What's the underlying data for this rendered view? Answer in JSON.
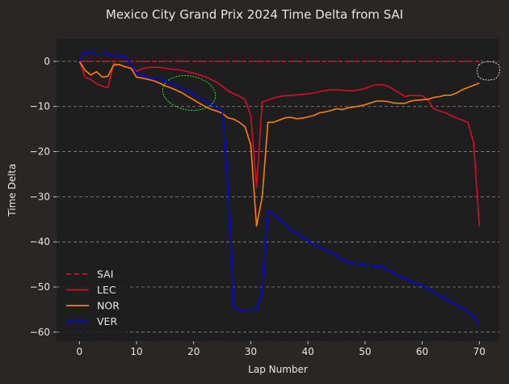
{
  "chart_data": {
    "type": "line",
    "title": "Mexico City Grand Prix 2024 Time Delta from SAI",
    "xlabel": "Lap Number",
    "ylabel": "Time Delta",
    "xlim": [
      -4,
      73.5
    ],
    "ylim": [
      -62,
      5
    ],
    "xticks": [
      0,
      10,
      20,
      30,
      40,
      50,
      60,
      70
    ],
    "xtick_labels": [
      "0",
      "10",
      "20",
      "30",
      "40",
      "50",
      "60",
      "70"
    ],
    "yticks": [
      0,
      -10,
      -20,
      -30,
      -40,
      -50,
      -60
    ],
    "ytick_labels": [
      "0",
      "−10",
      "−20",
      "−30",
      "−40",
      "−50",
      "−60"
    ],
    "grid": "horizontal dashed",
    "legend_position": "lower-left",
    "colors": {
      "figure_bg": "#292625",
      "axes_bg": "#1e1e1e",
      "text": "#e6e6e6",
      "grid": "#8a8a8a"
    },
    "series": [
      {
        "name": "SAI",
        "color": "#dc0a2a",
        "dash": true,
        "x": [
          0,
          70
        ],
        "y": [
          0,
          0
        ]
      },
      {
        "name": "LEC",
        "color": "#dc0a2a",
        "dash": false,
        "x": [
          0,
          1,
          2,
          3,
          4,
          5,
          6,
          7,
          8,
          9,
          10,
          11,
          12,
          13,
          14,
          15,
          16,
          17,
          18,
          19,
          20,
          21,
          22,
          23,
          24,
          25,
          26,
          27,
          28,
          29,
          30,
          31,
          32,
          33,
          34,
          35,
          36,
          37,
          38,
          39,
          40,
          41,
          42,
          43,
          44,
          45,
          46,
          47,
          48,
          49,
          50,
          51,
          52,
          53,
          54,
          55,
          56,
          57,
          58,
          59,
          60,
          61,
          62,
          63,
          64,
          65,
          66,
          67,
          68,
          69,
          70
        ],
        "y": [
          0,
          -3.5,
          -4,
          -5,
          -5.5,
          -5.8,
          -0.5,
          -0.8,
          -1.2,
          -1.5,
          -2.2,
          -1.6,
          -1.4,
          -1.3,
          -1.3,
          -1.5,
          -1.7,
          -1.8,
          -2.0,
          -2.3,
          -2.6,
          -3.0,
          -3.4,
          -4.0,
          -4.6,
          -5.5,
          -6.5,
          -7.2,
          -7.7,
          -8.5,
          -12,
          -28,
          -9,
          -8.6,
          -8.1,
          -7.8,
          -7.6,
          -7.6,
          -7.4,
          -7.3,
          -7.2,
          -7.0,
          -6.7,
          -6.5,
          -6.3,
          -6.3,
          -6.4,
          -6.5,
          -6.5,
          -6.3,
          -6.0,
          -5.5,
          -5.2,
          -5.2,
          -5.5,
          -6.2,
          -7.0,
          -7.8,
          -7.5,
          -7.6,
          -7.6,
          -8.5,
          -10.5,
          -11,
          -11.3,
          -12.0,
          -12.5,
          -13.0,
          -13.5,
          -18,
          -36.5
        ]
      },
      {
        "name": "NOR",
        "color": "#ff8000",
        "dash": false,
        "x": [
          0,
          1,
          2,
          3,
          4,
          5,
          6,
          7,
          8,
          9,
          10,
          11,
          12,
          13,
          14,
          15,
          16,
          17,
          18,
          19,
          20,
          21,
          22,
          23,
          24,
          25,
          26,
          27,
          28,
          29,
          30,
          31,
          32,
          33,
          34,
          35,
          36,
          37,
          38,
          39,
          40,
          41,
          42,
          43,
          44,
          45,
          46,
          47,
          48,
          49,
          50,
          51,
          52,
          53,
          54,
          55,
          56,
          57,
          58,
          59,
          60,
          61,
          62,
          63,
          64,
          65,
          66,
          67,
          68,
          69,
          70
        ],
        "y": [
          0,
          -2,
          -3,
          -2.3,
          -3.5,
          -3.3,
          -0.8,
          -0.7,
          -1.2,
          -1.5,
          -3.5,
          -3.7,
          -4.0,
          -4.3,
          -4.8,
          -5.4,
          -5.9,
          -6.4,
          -7.0,
          -7.8,
          -8.5,
          -9.3,
          -10.0,
          -10.6,
          -11.0,
          -11.5,
          -12.5,
          -12.8,
          -13.5,
          -14.5,
          -18.5,
          -36.5,
          -30,
          -13.5,
          -13.5,
          -13.0,
          -12.5,
          -12.4,
          -12.7,
          -12.6,
          -12.3,
          -12.0,
          -11.4,
          -11.2,
          -10.9,
          -10.5,
          -10.7,
          -10.3,
          -10.1,
          -9.9,
          -9.6,
          -9.2,
          -8.8,
          -8.8,
          -8.9,
          -9.2,
          -9.3,
          -9.3,
          -8.8,
          -8.6,
          -8.5,
          -8.4,
          -8.0,
          -7.8,
          -7.5,
          -7.5,
          -7.0,
          -6.3,
          -5.8,
          -5.3,
          -4.8
        ]
      },
      {
        "name": "VER",
        "color": "#0000ff",
        "dash": false,
        "x": [
          0,
          1,
          2,
          3,
          4,
          5,
          6,
          7,
          8,
          9,
          10,
          11,
          12,
          13,
          14,
          15,
          16,
          17,
          18,
          19,
          20,
          21,
          22,
          23,
          24,
          25,
          26,
          27,
          28,
          29,
          30,
          31,
          32,
          33,
          34,
          35,
          36,
          37,
          38,
          39,
          40,
          41,
          42,
          43,
          44,
          45,
          46,
          47,
          48,
          49,
          50,
          51,
          52,
          53,
          54,
          55,
          56,
          57,
          58,
          59,
          60,
          61,
          62,
          63,
          64,
          65,
          66,
          67,
          68,
          69,
          70
        ],
        "y": [
          0,
          2.2,
          2.0,
          1.6,
          1.8,
          1.6,
          1.2,
          1.2,
          1.0,
          -0.3,
          -2.8,
          -3.2,
          -3.5,
          -3.8,
          -4.0,
          -4.3,
          -4.8,
          -5.4,
          -6.0,
          -6.6,
          -7.2,
          -8.0,
          -8.8,
          -9.5,
          -10.2,
          -11.0,
          -27,
          -54.5,
          -55.0,
          -55.2,
          -55.0,
          -55.0,
          -51,
          -33,
          -34,
          -35,
          -36,
          -37.5,
          -38.0,
          -39.0,
          -39.8,
          -40.5,
          -41.0,
          -41.8,
          -42.3,
          -43.0,
          -43.8,
          -44.4,
          -44.7,
          -44.9,
          -45.1,
          -45.3,
          -45.5,
          -45.6,
          -46.2,
          -47.0,
          -47.6,
          -48.2,
          -48.8,
          -49.2,
          -49.6,
          -50.4,
          -51.2,
          -51.9,
          -52.6,
          -53.3,
          -54.0,
          -54.7,
          -55.4,
          -56.5,
          -58.5
        ]
      }
    ]
  }
}
